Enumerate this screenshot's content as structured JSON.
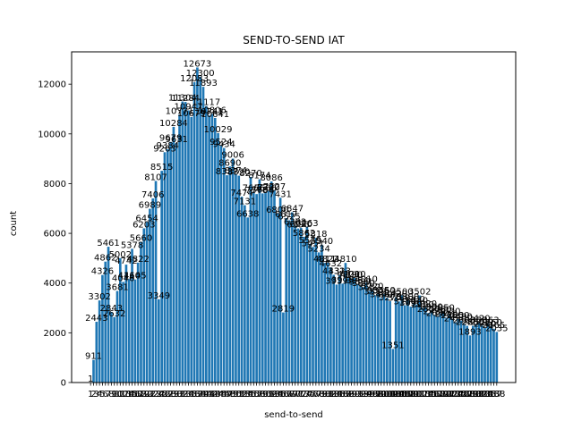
{
  "chart_data": {
    "type": "bar",
    "title": "SEND-TO-SEND IAT",
    "xlabel": "send-to-send",
    "ylabel": "count",
    "ylim": [
      0,
      13300
    ],
    "yticks": [
      0,
      2000,
      4000,
      6000,
      8000,
      10000,
      12000
    ],
    "xtick_labels": [
      "1",
      "2",
      "3",
      "4",
      "5",
      "6",
      "7",
      "8",
      "9",
      "10",
      "11",
      "12",
      "13",
      "14",
      "15",
      "16",
      "17",
      "18",
      "19",
      "20",
      "21",
      "22",
      "23",
      "24",
      "25",
      "26",
      "27",
      "28",
      "29",
      "30",
      "31",
      "32",
      "33",
      "34",
      "35",
      "36",
      "37",
      "38",
      "39",
      "40",
      "41",
      "42",
      "43",
      "44",
      "45",
      "46",
      "47",
      "48",
      "49",
      "50",
      "51",
      "52",
      "53",
      "54",
      "55",
      "56",
      "57",
      "58",
      "59",
      "60",
      "61",
      "62",
      "63",
      "64",
      "65",
      "66",
      "67",
      "68",
      "69",
      "70",
      "71",
      "72",
      "73",
      "74",
      "75",
      "76",
      "77",
      "78",
      "79",
      "80",
      "81",
      "82",
      "83",
      "84",
      "85",
      "86",
      "87",
      "88",
      "89",
      "90",
      "91",
      "92",
      "93",
      "94",
      "95",
      "96",
      "97",
      "98",
      "99",
      "100",
      "101",
      "102",
      "103",
      "104",
      "105",
      "106",
      "107",
      "108",
      "109",
      "110",
      "111",
      "112",
      "113",
      "114",
      "115",
      "116",
      "117",
      "118",
      "119",
      "120",
      "121",
      "122",
      "123",
      "124",
      "125",
      "126",
      "127",
      "128",
      "129",
      "130",
      "131",
      "132",
      "133",
      "134",
      "135",
      "136",
      "137",
      "138"
    ],
    "bar_color": "#1f77b4",
    "values": [
      1,
      911,
      2443,
      3302,
      4326,
      4862,
      5461,
      2843,
      2632,
      3681,
      5002,
      4046,
      4742,
      4160,
      5378,
      4145,
      4822,
      5660,
      6203,
      6454,
      6989,
      7406,
      8107,
      3349,
      8515,
      9263,
      9384,
      9679,
      10284,
      9631,
      10771,
      11304,
      11284,
      10947,
      10679,
      12083,
      12673,
      12300,
      11893,
      11117,
      10741,
      10806,
      10641,
      10029,
      9524,
      9434,
      8337,
      8690,
      9006,
      8374,
      8320,
      7474,
      7131,
      6638,
      8270,
      7666,
      7578,
      8174,
      7606,
      7666,
      7700,
      8086,
      7727,
      6800,
      7431,
      2819,
      6617,
      6525,
      6847,
      6302,
      6196,
      6220,
      5862,
      6263,
      5579,
      5451,
      5818,
      5234,
      5540,
      4811,
      4822,
      4632,
      4331,
      3939,
      4323,
      3978,
      4810,
      4200,
      4190,
      4210,
      3954,
      3897,
      3840,
      4010,
      3682,
      3720,
      3510,
      3546,
      3400,
      3550,
      3406,
      3270,
      1351,
      3420,
      3260,
      3500,
      3110,
      3300,
      3050,
      3200,
      3140,
      3502,
      2990,
      3020,
      2800,
      2900,
      2720,
      2650,
      2780,
      2850,
      2610,
      2720,
      2560,
      2430,
      2550,
      2490,
      2360,
      2280,
      1893,
      2280,
      2350,
      2420,
      2290,
      2210,
      2363,
      2260,
      2165,
      2035
    ]
  }
}
